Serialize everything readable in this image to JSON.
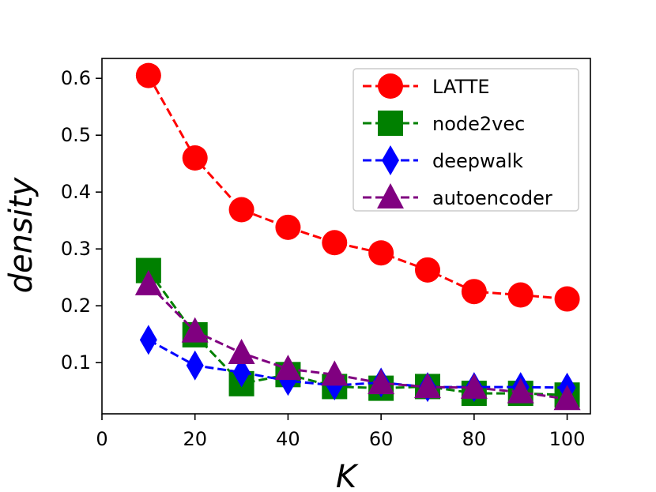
{
  "chart_data": {
    "type": "line",
    "title": "",
    "xlabel": "K",
    "ylabel": "density",
    "xlim": [
      0,
      105
    ],
    "ylim": [
      0.01,
      0.635
    ],
    "xticks": [
      0,
      20,
      40,
      60,
      80,
      100
    ],
    "xtick_labels": [
      "0",
      "20",
      "40",
      "60",
      "80",
      "100"
    ],
    "yticks": [
      0.1,
      0.2,
      0.3,
      0.4,
      0.5,
      0.6
    ],
    "ytick_labels": [
      "0.1",
      "0.2",
      "0.3",
      "0.4",
      "0.5",
      "0.6"
    ],
    "grid": false,
    "legend_position": "top-right",
    "x": [
      10,
      20,
      30,
      40,
      50,
      60,
      70,
      80,
      90,
      100
    ],
    "series": [
      {
        "name": "LATTE",
        "color": "#ff0000",
        "marker": "circle",
        "values": [
          0.605,
          0.46,
          0.369,
          0.338,
          0.311,
          0.293,
          0.263,
          0.225,
          0.219,
          0.212
        ]
      },
      {
        "name": "node2vec",
        "color": "#008000",
        "marker": "square",
        "values": [
          0.262,
          0.149,
          0.063,
          0.079,
          0.058,
          0.055,
          0.058,
          0.046,
          0.046,
          0.043
        ]
      },
      {
        "name": "deepwalk",
        "color": "#0000ff",
        "marker": "diamond",
        "values": [
          0.14,
          0.095,
          0.083,
          0.068,
          0.06,
          0.065,
          0.057,
          0.057,
          0.057,
          0.056
        ]
      },
      {
        "name": "autoencoder",
        "color": "#800080",
        "marker": "triangle",
        "values": [
          0.238,
          0.155,
          0.117,
          0.089,
          0.079,
          0.064,
          0.057,
          0.056,
          0.048,
          0.036
        ]
      }
    ]
  }
}
